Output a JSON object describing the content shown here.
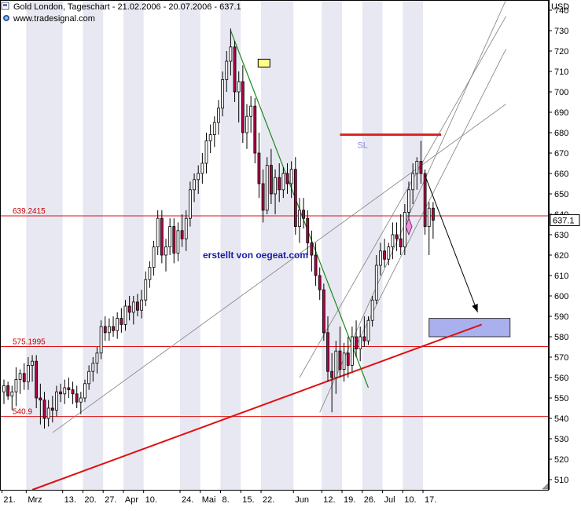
{
  "header": {
    "title": "Gold London, Tageschart - 21.02.2006 - 20.07.2006 - 637.1",
    "source": "www.tradesignal.com",
    "currency": "USD"
  },
  "chart_data": {
    "type": "candlestick",
    "instrument": "Gold London",
    "interval": "Tageschart",
    "period": "21.02.2006 - 20.07.2006",
    "last_price": 637.1,
    "last_price_label": "637.1",
    "currency": "USD",
    "ylim": [
      505,
      745
    ],
    "y_ticks": [
      510,
      520,
      530,
      540,
      550,
      560,
      570,
      580,
      590,
      600,
      610,
      620,
      630,
      640,
      650,
      660,
      670,
      680,
      690,
      700,
      710,
      720,
      730,
      740
    ],
    "x_ticks": [
      {
        "label": "21.",
        "i": 0
      },
      {
        "label": "Mrz",
        "i": 6
      },
      {
        "label": "13.",
        "i": 15
      },
      {
        "label": "20.",
        "i": 20
      },
      {
        "label": "27.",
        "i": 25
      },
      {
        "label": "Apr",
        "i": 30
      },
      {
        "label": "10.",
        "i": 35
      },
      {
        "label": "24.",
        "i": 44
      },
      {
        "label": "Mai",
        "i": 49
      },
      {
        "label": "8.",
        "i": 54
      },
      {
        "label": "15.",
        "i": 59
      },
      {
        "label": "22.",
        "i": 64
      },
      {
        "label": "Jun",
        "i": 72
      },
      {
        "label": "12.",
        "i": 79
      },
      {
        "label": "19.",
        "i": 84
      },
      {
        "label": "26.",
        "i": 89
      },
      {
        "label": "Jul",
        "i": 94
      },
      {
        "label": "10.",
        "i": 99
      },
      {
        "label": "17.",
        "i": 104
      }
    ],
    "candles": [
      {
        "o": 553,
        "h": 559,
        "l": 547,
        "c": 556
      },
      {
        "o": 556,
        "h": 558,
        "l": 549,
        "c": 551
      },
      {
        "o": 551,
        "h": 556,
        "l": 544,
        "c": 553
      },
      {
        "o": 553,
        "h": 565,
        "l": 546,
        "c": 559
      },
      {
        "o": 559,
        "h": 564,
        "l": 552,
        "c": 562
      },
      {
        "o": 562,
        "h": 567,
        "l": 554,
        "c": 558
      },
      {
        "o": 558,
        "h": 570,
        "l": 554,
        "c": 566
      },
      {
        "o": 566,
        "h": 571,
        "l": 558,
        "c": 568
      },
      {
        "o": 568,
        "h": 571,
        "l": 545,
        "c": 550
      },
      {
        "o": 550,
        "h": 557,
        "l": 537,
        "c": 549
      },
      {
        "o": 549,
        "h": 553,
        "l": 535,
        "c": 540
      },
      {
        "o": 540,
        "h": 549,
        "l": 536,
        "c": 545
      },
      {
        "o": 545,
        "h": 551,
        "l": 538,
        "c": 544
      },
      {
        "o": 544,
        "h": 556,
        "l": 541,
        "c": 553
      },
      {
        "o": 553,
        "h": 557,
        "l": 548,
        "c": 552
      },
      {
        "o": 552,
        "h": 559,
        "l": 547,
        "c": 555
      },
      {
        "o": 555,
        "h": 560,
        "l": 550,
        "c": 554
      },
      {
        "o": 554,
        "h": 558,
        "l": 547,
        "c": 552
      },
      {
        "o": 552,
        "h": 556,
        "l": 545,
        "c": 548
      },
      {
        "o": 548,
        "h": 553,
        "l": 542,
        "c": 550
      },
      {
        "o": 550,
        "h": 559,
        "l": 548,
        "c": 557
      },
      {
        "o": 557,
        "h": 566,
        "l": 554,
        "c": 563
      },
      {
        "o": 563,
        "h": 570,
        "l": 558,
        "c": 567
      },
      {
        "o": 567,
        "h": 575,
        "l": 562,
        "c": 572
      },
      {
        "o": 572,
        "h": 588,
        "l": 569,
        "c": 585
      },
      {
        "o": 585,
        "h": 590,
        "l": 578,
        "c": 582
      },
      {
        "o": 582,
        "h": 589,
        "l": 578,
        "c": 585
      },
      {
        "o": 585,
        "h": 590,
        "l": 580,
        "c": 583
      },
      {
        "o": 583,
        "h": 592,
        "l": 579,
        "c": 589
      },
      {
        "o": 589,
        "h": 594,
        "l": 582,
        "c": 586
      },
      {
        "o": 586,
        "h": 598,
        "l": 583,
        "c": 595
      },
      {
        "o": 595,
        "h": 600,
        "l": 588,
        "c": 592
      },
      {
        "o": 592,
        "h": 600,
        "l": 586,
        "c": 597
      },
      {
        "o": 597,
        "h": 601,
        "l": 590,
        "c": 593
      },
      {
        "o": 593,
        "h": 603,
        "l": 589,
        "c": 598
      },
      {
        "o": 598,
        "h": 612,
        "l": 595,
        "c": 608
      },
      {
        "o": 608,
        "h": 617,
        "l": 604,
        "c": 614
      },
      {
        "o": 614,
        "h": 627,
        "l": 610,
        "c": 624
      },
      {
        "o": 624,
        "h": 642,
        "l": 620,
        "c": 638
      },
      {
        "o": 638,
        "h": 642,
        "l": 616,
        "c": 620
      },
      {
        "o": 620,
        "h": 628,
        "l": 612,
        "c": 624
      },
      {
        "o": 624,
        "h": 638,
        "l": 620,
        "c": 634
      },
      {
        "o": 634,
        "h": 638,
        "l": 616,
        "c": 621
      },
      {
        "o": 621,
        "h": 636,
        "l": 617,
        "c": 632
      },
      {
        "o": 632,
        "h": 640,
        "l": 624,
        "c": 628
      },
      {
        "o": 628,
        "h": 642,
        "l": 622,
        "c": 638
      },
      {
        "o": 638,
        "h": 656,
        "l": 634,
        "c": 652
      },
      {
        "o": 652,
        "h": 660,
        "l": 646,
        "c": 657
      },
      {
        "o": 657,
        "h": 664,
        "l": 650,
        "c": 660
      },
      {
        "o": 660,
        "h": 670,
        "l": 655,
        "c": 665
      },
      {
        "o": 665,
        "h": 680,
        "l": 660,
        "c": 676
      },
      {
        "o": 676,
        "h": 684,
        "l": 670,
        "c": 679
      },
      {
        "o": 679,
        "h": 688,
        "l": 673,
        "c": 685
      },
      {
        "o": 685,
        "h": 696,
        "l": 679,
        "c": 692
      },
      {
        "o": 692,
        "h": 710,
        "l": 688,
        "c": 706
      },
      {
        "o": 706,
        "h": 720,
        "l": 700,
        "c": 715
      },
      {
        "o": 715,
        "h": 731,
        "l": 708,
        "c": 722
      },
      {
        "o": 722,
        "h": 725,
        "l": 695,
        "c": 700
      },
      {
        "o": 700,
        "h": 710,
        "l": 685,
        "c": 705
      },
      {
        "o": 705,
        "h": 713,
        "l": 675,
        "c": 680
      },
      {
        "o": 680,
        "h": 694,
        "l": 672,
        "c": 688
      },
      {
        "o": 688,
        "h": 698,
        "l": 680,
        "c": 693
      },
      {
        "o": 693,
        "h": 697,
        "l": 665,
        "c": 670
      },
      {
        "o": 670,
        "h": 680,
        "l": 648,
        "c": 655
      },
      {
        "o": 655,
        "h": 662,
        "l": 636,
        "c": 642
      },
      {
        "o": 642,
        "h": 668,
        "l": 640,
        "c": 664
      },
      {
        "o": 664,
        "h": 672,
        "l": 645,
        "c": 650
      },
      {
        "o": 650,
        "h": 662,
        "l": 640,
        "c": 658
      },
      {
        "o": 658,
        "h": 665,
        "l": 646,
        "c": 652
      },
      {
        "o": 652,
        "h": 663,
        "l": 648,
        "c": 660
      },
      {
        "o": 660,
        "h": 665,
        "l": 650,
        "c": 655
      },
      {
        "o": 655,
        "h": 666,
        "l": 648,
        "c": 662
      },
      {
        "o": 662,
        "h": 668,
        "l": 630,
        "c": 634
      },
      {
        "o": 634,
        "h": 648,
        "l": 626,
        "c": 642
      },
      {
        "o": 642,
        "h": 648,
        "l": 633,
        "c": 638
      },
      {
        "o": 638,
        "h": 642,
        "l": 620,
        "c": 626
      },
      {
        "o": 626,
        "h": 632,
        "l": 612,
        "c": 620
      },
      {
        "o": 620,
        "h": 626,
        "l": 605,
        "c": 610
      },
      {
        "o": 610,
        "h": 614,
        "l": 598,
        "c": 603
      },
      {
        "o": 603,
        "h": 606,
        "l": 578,
        "c": 582
      },
      {
        "o": 582,
        "h": 590,
        "l": 558,
        "c": 563
      },
      {
        "o": 563,
        "h": 572,
        "l": 543,
        "c": 560
      },
      {
        "o": 560,
        "h": 578,
        "l": 552,
        "c": 573
      },
      {
        "o": 573,
        "h": 585,
        "l": 560,
        "c": 564
      },
      {
        "o": 564,
        "h": 577,
        "l": 558,
        "c": 572
      },
      {
        "o": 572,
        "h": 580,
        "l": 560,
        "c": 566
      },
      {
        "o": 566,
        "h": 585,
        "l": 563,
        "c": 580
      },
      {
        "o": 580,
        "h": 588,
        "l": 570,
        "c": 574
      },
      {
        "o": 574,
        "h": 585,
        "l": 568,
        "c": 580
      },
      {
        "o": 580,
        "h": 590,
        "l": 575,
        "c": 578
      },
      {
        "o": 578,
        "h": 590,
        "l": 576,
        "c": 588
      },
      {
        "o": 588,
        "h": 600,
        "l": 585,
        "c": 598
      },
      {
        "o": 598,
        "h": 620,
        "l": 596,
        "c": 615
      },
      {
        "o": 615,
        "h": 626,
        "l": 610,
        "c": 622
      },
      {
        "o": 622,
        "h": 628,
        "l": 614,
        "c": 618
      },
      {
        "o": 618,
        "h": 626,
        "l": 615,
        "c": 624
      },
      {
        "o": 624,
        "h": 636,
        "l": 618,
        "c": 630
      },
      {
        "o": 630,
        "h": 636,
        "l": 622,
        "c": 628
      },
      {
        "o": 628,
        "h": 640,
        "l": 620,
        "c": 624
      },
      {
        "o": 624,
        "h": 645,
        "l": 620,
        "c": 641
      },
      {
        "o": 641,
        "h": 656,
        "l": 636,
        "c": 652
      },
      {
        "o": 652,
        "h": 665,
        "l": 645,
        "c": 660
      },
      {
        "o": 660,
        "h": 668,
        "l": 652,
        "c": 666
      },
      {
        "o": 666,
        "h": 676,
        "l": 655,
        "c": 660
      },
      {
        "o": 660,
        "h": 662,
        "l": 630,
        "c": 634
      },
      {
        "o": 634,
        "h": 646,
        "l": 620,
        "c": 643
      },
      {
        "o": 643,
        "h": 646,
        "l": 628,
        "c": 637.1
      }
    ],
    "horizontal_lines": [
      {
        "label": "639.2415",
        "value": 639.2415
      },
      {
        "label": "575.1995",
        "value": 575.1995
      },
      {
        "label": "540.9",
        "value": 540.9
      }
    ],
    "trendlines": [
      {
        "name": "long-term support",
        "color": "#dd1111",
        "from": {
          "i": 7,
          "v": 505
        },
        "to": {
          "i": 118,
          "v": 586
        }
      },
      {
        "name": "downtrend",
        "color": "#1a8a1a",
        "from": {
          "i": 56,
          "v": 730
        },
        "to": {
          "i": 90,
          "v": 555
        }
      },
      {
        "name": "gray support 1",
        "color": "#808080",
        "from": {
          "i": 12,
          "v": 533
        },
        "to": {
          "i": 124,
          "v": 694
        }
      },
      {
        "name": "gray channel a",
        "color": "#808080",
        "from": {
          "i": 73,
          "v": 560
        },
        "to": {
          "i": 124,
          "v": 737
        }
      },
      {
        "name": "gray channel b",
        "color": "#808080",
        "from": {
          "i": 78,
          "v": 543
        },
        "to": {
          "i": 124,
          "v": 745
        }
      },
      {
        "name": "gray channel c",
        "color": "#808080",
        "from": {
          "i": 86,
          "v": 572
        },
        "to": {
          "i": 124,
          "v": 721
        }
      }
    ],
    "annotations": {
      "stop_loss": {
        "label": "SL",
        "value": 679,
        "from_i": 83,
        "to_i": 108,
        "color": "#dd2222"
      },
      "target_zone": {
        "low": 580,
        "high": 589,
        "from_i": 105,
        "to_i": 125,
        "color": "#aab0ee"
      },
      "arrow": {
        "from": {
          "i": 104,
          "v": 659
        },
        "to": {
          "i": 117,
          "v": 592
        }
      },
      "watermark": "erstellt von oegeat.com"
    },
    "colors": {
      "up": "#ffffff",
      "down": "#b5004a",
      "horizontal": "#dd1111",
      "band": "#e8e8f2",
      "axis_text": "#000000",
      "price_label_text": "#c00000"
    }
  }
}
